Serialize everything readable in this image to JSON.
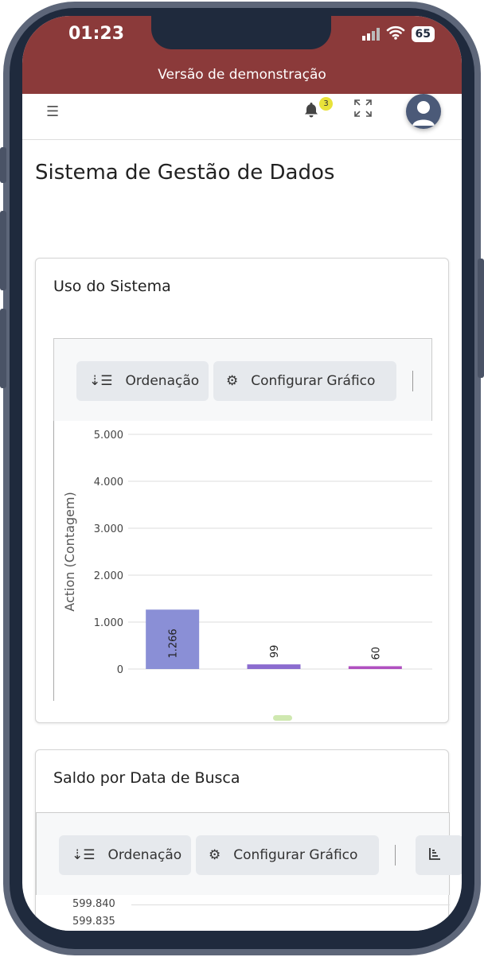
{
  "status_bar": {
    "time": "01:23",
    "battery": "65"
  },
  "banner": "Versão de demonstração",
  "appbar": {
    "notification_count": "3"
  },
  "page_title": "Sistema de Gestão de Dados",
  "cards": [
    {
      "title": "Uso do Sistema",
      "toolbar": {
        "sort_label": "Ordenação",
        "config_label": "Configurar Gráfico"
      }
    },
    {
      "title": "Saldo por Data de Busca",
      "toolbar": {
        "sort_label": "Ordenação",
        "config_label": "Configurar Gráfico"
      },
      "y_ticks_visible": [
        "599.840",
        "599.835"
      ]
    }
  ],
  "chart_data": {
    "type": "bar",
    "ylabel": "Action (Contagem)",
    "ylim": [
      0,
      5000
    ],
    "y_ticks": [
      "0",
      "1.000",
      "2.000",
      "3.000",
      "4.000",
      "5.000"
    ],
    "values": [
      1266,
      99,
      60
    ],
    "value_labels": [
      "1.266",
      "99",
      "60"
    ],
    "colors": [
      "#8a8fd6",
      "#8b6ccf",
      "#b050c0"
    ],
    "grid": true
  }
}
